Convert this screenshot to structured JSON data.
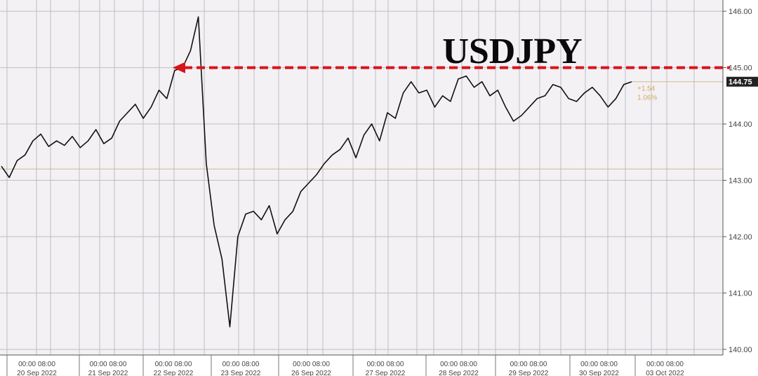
{
  "chart_data": {
    "type": "line",
    "title": "USDJPY",
    "ylim": [
      139.9,
      146.2
    ],
    "y_ticks": [
      "146.00",
      "145.00",
      "144.00",
      "143.00",
      "142.00",
      "141.00",
      "140.00"
    ],
    "x_date_labels": [
      "20 Sep 2022",
      "21 Sep 2022",
      "22 Sep 2022",
      "23 Sep 2022",
      "26 Sep 2022",
      "27 Sep 2022",
      "28 Sep 2022",
      "29 Sep 2022",
      "30 Sep 2022",
      "03 Oct 2022"
    ],
    "x_time_labels": [
      "00:00 08:00",
      "00:00 08:00",
      "00:00 08:00",
      "00:00 08:00",
      "00:00 08:00",
      "00:00 08:00",
      "00:00 08:00",
      "00:00 08:00",
      "00:00 08:00",
      "00:00 08:00"
    ],
    "series": [
      {
        "values": [
          143.25,
          143.05,
          143.35,
          143.45,
          143.7,
          143.82,
          143.6,
          143.7,
          143.62,
          143.78,
          143.58,
          143.7,
          143.9,
          143.65,
          143.75,
          144.05,
          144.2,
          144.35,
          144.1,
          144.3,
          144.6,
          144.45,
          144.95,
          145.0,
          145.3,
          145.9,
          143.3,
          142.2,
          141.6,
          140.4,
          142.0,
          142.4,
          142.45,
          142.3,
          142.55,
          142.05,
          142.3,
          142.45,
          142.8,
          142.95,
          143.1,
          143.3,
          143.45,
          143.55,
          143.75,
          143.4,
          143.8,
          144.0,
          143.7,
          144.2,
          144.1,
          144.55,
          144.75,
          144.55,
          144.6,
          144.3,
          144.5,
          144.4,
          144.8,
          144.85,
          144.65,
          144.75,
          144.5,
          144.6,
          144.3,
          144.05,
          144.15,
          144.3,
          144.45,
          144.5,
          144.7,
          144.65,
          144.45,
          144.4,
          144.55,
          144.65,
          144.5,
          144.3,
          144.45,
          144.7,
          144.75
        ]
      }
    ],
    "last_value_label": "144.75",
    "change_labels": [
      "+1.54",
      "1.06%"
    ],
    "reference_line_value": 143.2,
    "annotation_line_value": 145.0,
    "grid": true,
    "legend": "none"
  },
  "colors": {
    "background": "#ffffff",
    "plot_background": "#f4f1f4",
    "grid": "#bdbdc4",
    "line": "#111111",
    "annotation": "#d8141c",
    "reference_line": "#c9bd8c",
    "change_text": "#d4aa60",
    "price_tag": "#222222",
    "price_tag_text": "#ffffff"
  }
}
